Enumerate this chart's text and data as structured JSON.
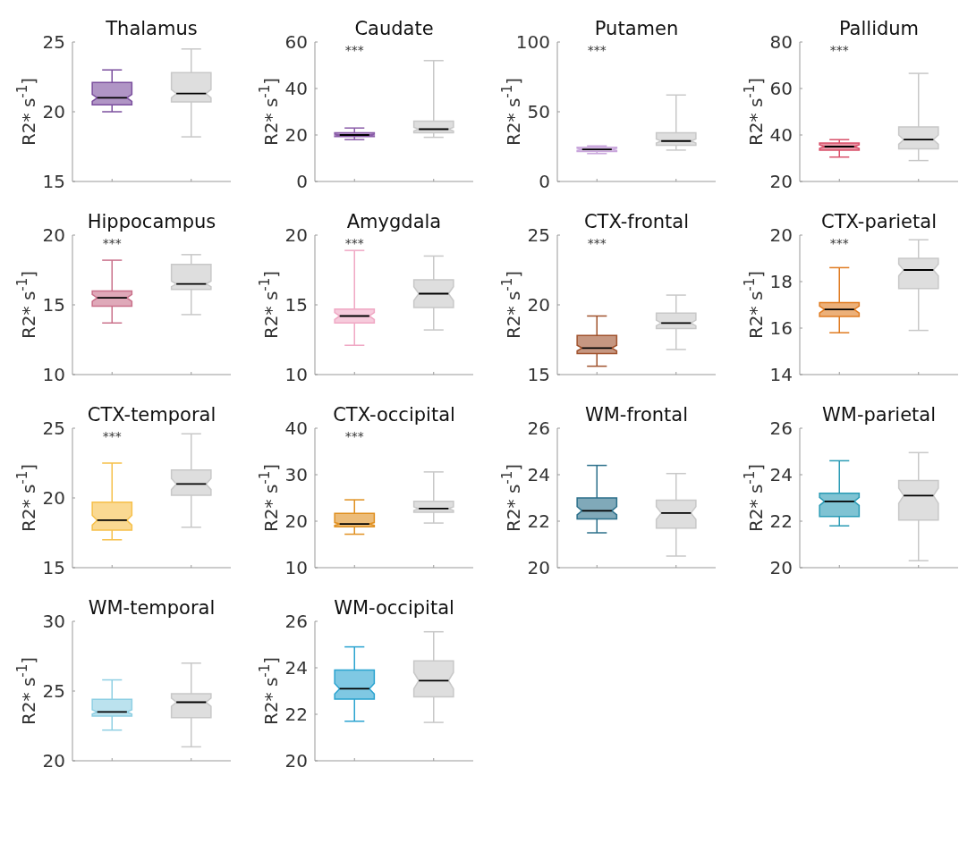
{
  "chart_data": [
    {
      "type": "box",
      "title": "Thalamus",
      "ylabel": "R2* s$^{-1}$]",
      "categories": [
        null,
        null
      ],
      "colors": [
        "#7b4f9e",
        "#c8c8c8"
      ],
      "ylim": [
        15,
        25
      ],
      "yticks": [
        15,
        20,
        25
      ],
      "boxes": [
        {
          "low": 20.0,
          "q1": 20.5,
          "median": 21.0,
          "q3": 22.1,
          "high": 23.0
        },
        {
          "low": 18.2,
          "q1": 20.7,
          "median": 21.3,
          "q3": 22.8,
          "high": 24.5
        }
      ]
    },
    {
      "type": "box",
      "title": "Caudate",
      "ylabel": "R2* s$^{-1}$]",
      "categories": [
        null,
        null
      ],
      "colors": [
        "#8a5ca8",
        "#c8c8c8"
      ],
      "ylim": [
        0,
        60
      ],
      "yticks": [
        0,
        20,
        40,
        60
      ],
      "annotations": [
        "***"
      ],
      "boxes": [
        {
          "low": 18,
          "q1": 19.3,
          "median": 20,
          "q3": 21,
          "high": 23
        },
        {
          "low": 19,
          "q1": 21,
          "median": 22.5,
          "q3": 26,
          "high": 52
        }
      ]
    },
    {
      "type": "box",
      "title": "Putamen",
      "ylabel": "R2* s$^{-1}$]",
      "categories": [
        null,
        null
      ],
      "colors": [
        "#c9a6dc",
        "#c8c8c8"
      ],
      "ylim": [
        0,
        100
      ],
      "yticks": [
        0,
        50,
        100
      ],
      "annotations": [
        "***"
      ],
      "boxes": [
        {
          "low": 20,
          "q1": 21.5,
          "median": 23,
          "q3": 24.5,
          "high": 25.5
        },
        {
          "low": 22.5,
          "q1": 26,
          "median": 29,
          "q3": 35,
          "high": 62
        }
      ]
    },
    {
      "type": "box",
      "title": "Pallidum",
      "ylabel": "R2* s$^{-1}$]",
      "categories": [
        null,
        null
      ],
      "colors": [
        "#d9506a",
        "#c8c8c8"
      ],
      "ylim": [
        20,
        80
      ],
      "yticks": [
        20,
        40,
        60,
        80
      ],
      "annotations": [
        "***"
      ],
      "boxes": [
        {
          "low": 30.5,
          "q1": 33.5,
          "median": 35,
          "q3": 36.5,
          "high": 38
        },
        {
          "low": 29,
          "q1": 34,
          "median": 38,
          "q3": 43.5,
          "high": 66.5
        }
      ]
    },
    {
      "type": "box",
      "title": "Hippocampus",
      "ylabel": "R2* s$^{-1}$]",
      "categories": [
        null,
        null
      ],
      "colors": [
        "#c9708a",
        "#c8c8c8"
      ],
      "ylim": [
        10,
        20
      ],
      "yticks": [
        10,
        15,
        20
      ],
      "annotations": [
        "***"
      ],
      "boxes": [
        {
          "low": 13.7,
          "q1": 14.9,
          "median": 15.5,
          "q3": 16.0,
          "high": 18.2
        },
        {
          "low": 14.3,
          "q1": 16.1,
          "median": 16.5,
          "q3": 17.9,
          "high": 18.6
        }
      ]
    },
    {
      "type": "box",
      "title": "Amygdala",
      "ylabel": "R2* s$^{-1}$]",
      "categories": [
        null,
        null
      ],
      "colors": [
        "#f0a8c4",
        "#c8c8c8"
      ],
      "ylim": [
        10,
        20
      ],
      "yticks": [
        10,
        15,
        20
      ],
      "annotations": [
        "***"
      ],
      "boxes": [
        {
          "low": 12.1,
          "q1": 13.7,
          "median": 14.2,
          "q3": 14.7,
          "high": 18.9
        },
        {
          "low": 13.2,
          "q1": 14.8,
          "median": 15.8,
          "q3": 16.8,
          "high": 18.5
        }
      ]
    },
    {
      "type": "box",
      "title": "CTX-frontal",
      "ylabel": "R2* s$^{-1}$]",
      "categories": [
        null,
        null
      ],
      "colors": [
        "#a0522d",
        "#c8c8c8"
      ],
      "ylim": [
        15,
        25
      ],
      "yticks": [
        15,
        20,
        25
      ],
      "annotations": [
        "***"
      ],
      "boxes": [
        {
          "low": 15.6,
          "q1": 16.5,
          "median": 16.9,
          "q3": 17.8,
          "high": 19.2
        },
        {
          "low": 16.8,
          "q1": 18.3,
          "median": 18.7,
          "q3": 19.4,
          "high": 20.7
        }
      ]
    },
    {
      "type": "box",
      "title": "CTX-parietal",
      "ylabel": "R2* s$^{-1}$]",
      "categories": [
        null,
        null
      ],
      "colors": [
        "#e07b20",
        "#c8c8c8"
      ],
      "ylim": [
        14,
        20
      ],
      "yticks": [
        14,
        16,
        18,
        20
      ],
      "annotations": [
        "***"
      ],
      "boxes": [
        {
          "low": 15.8,
          "q1": 16.5,
          "median": 16.8,
          "q3": 17.1,
          "high": 18.6
        },
        {
          "low": 15.9,
          "q1": 17.7,
          "median": 18.5,
          "q3": 19.0,
          "high": 19.8
        }
      ]
    },
    {
      "type": "box",
      "title": "CTX-temporal",
      "ylabel": "R2* s$^{-1}$]",
      "categories": [
        null,
        null
      ],
      "colors": [
        "#f6c04a",
        "#c8c8c8"
      ],
      "ylim": [
        15,
        25
      ],
      "yticks": [
        15,
        20,
        25
      ],
      "annotations": [
        "***"
      ],
      "boxes": [
        {
          "low": 17.0,
          "q1": 17.7,
          "median": 18.4,
          "q3": 19.7,
          "high": 22.5
        },
        {
          "low": 17.9,
          "q1": 20.2,
          "median": 21.0,
          "q3": 22.0,
          "high": 24.6
        }
      ]
    },
    {
      "type": "box",
      "title": "CTX-occipital",
      "ylabel": "R2* s$^{-1}$]",
      "categories": [
        null,
        null
      ],
      "colors": [
        "#e09020",
        "#c8c8c8"
      ],
      "ylim": [
        10,
        40
      ],
      "yticks": [
        10,
        20,
        30,
        40
      ],
      "annotations": [
        "***"
      ],
      "boxes": [
        {
          "low": 17.2,
          "q1": 18.8,
          "median": 19.4,
          "q3": 21.7,
          "high": 24.6
        },
        {
          "low": 19.6,
          "q1": 21.9,
          "median": 22.7,
          "q3": 24.3,
          "high": 30.6
        }
      ]
    },
    {
      "type": "box",
      "title": "WM-frontal",
      "ylabel": "R2* s$^{-1}$]",
      "categories": [
        null,
        null
      ],
      "colors": [
        "#2b6f8a",
        "#c8c8c8"
      ],
      "ylim": [
        20,
        26
      ],
      "yticks": [
        20,
        22,
        24,
        26
      ],
      "boxes": [
        {
          "low": 21.5,
          "q1": 22.1,
          "median": 22.45,
          "q3": 23.0,
          "high": 24.4
        },
        {
          "low": 20.5,
          "q1": 21.7,
          "median": 22.35,
          "q3": 22.9,
          "high": 24.05
        }
      ]
    },
    {
      "type": "box",
      "title": "WM-parietal",
      "ylabel": "R2* s$^{-1}$]",
      "categories": [
        null,
        null
      ],
      "colors": [
        "#2a9bb5",
        "#c8c8c8"
      ],
      "ylim": [
        20,
        26
      ],
      "yticks": [
        20,
        22,
        24,
        26
      ],
      "boxes": [
        {
          "low": 21.8,
          "q1": 22.2,
          "median": 22.85,
          "q3": 23.2,
          "high": 24.6
        },
        {
          "low": 20.3,
          "q1": 22.05,
          "median": 23.1,
          "q3": 23.75,
          "high": 24.95
        }
      ]
    },
    {
      "type": "box",
      "title": "WM-temporal",
      "ylabel": "R2* s$^{-1}$]",
      "categories": [
        null,
        null
      ],
      "colors": [
        "#8ecfe3",
        "#c8c8c8"
      ],
      "ylim": [
        20,
        30
      ],
      "yticks": [
        20,
        25,
        30
      ],
      "boxes": [
        {
          "low": 22.2,
          "q1": 23.2,
          "median": 23.5,
          "q3": 24.4,
          "high": 25.8
        },
        {
          "low": 21.0,
          "q1": 23.1,
          "median": 24.2,
          "q3": 24.8,
          "high": 27.0
        }
      ]
    },
    {
      "type": "box",
      "title": "WM-occipital",
      "ylabel": "R2* s$^{-1}$]",
      "categories": [
        null,
        null
      ],
      "colors": [
        "#2aa3d0",
        "#c8c8c8"
      ],
      "ylim": [
        20,
        26
      ],
      "yticks": [
        20,
        22,
        24,
        26
      ],
      "boxes": [
        {
          "low": 21.7,
          "q1": 22.65,
          "median": 23.1,
          "q3": 23.9,
          "high": 24.9
        },
        {
          "low": 21.65,
          "q1": 22.75,
          "median": 23.45,
          "q3": 24.3,
          "high": 25.55
        }
      ]
    }
  ]
}
